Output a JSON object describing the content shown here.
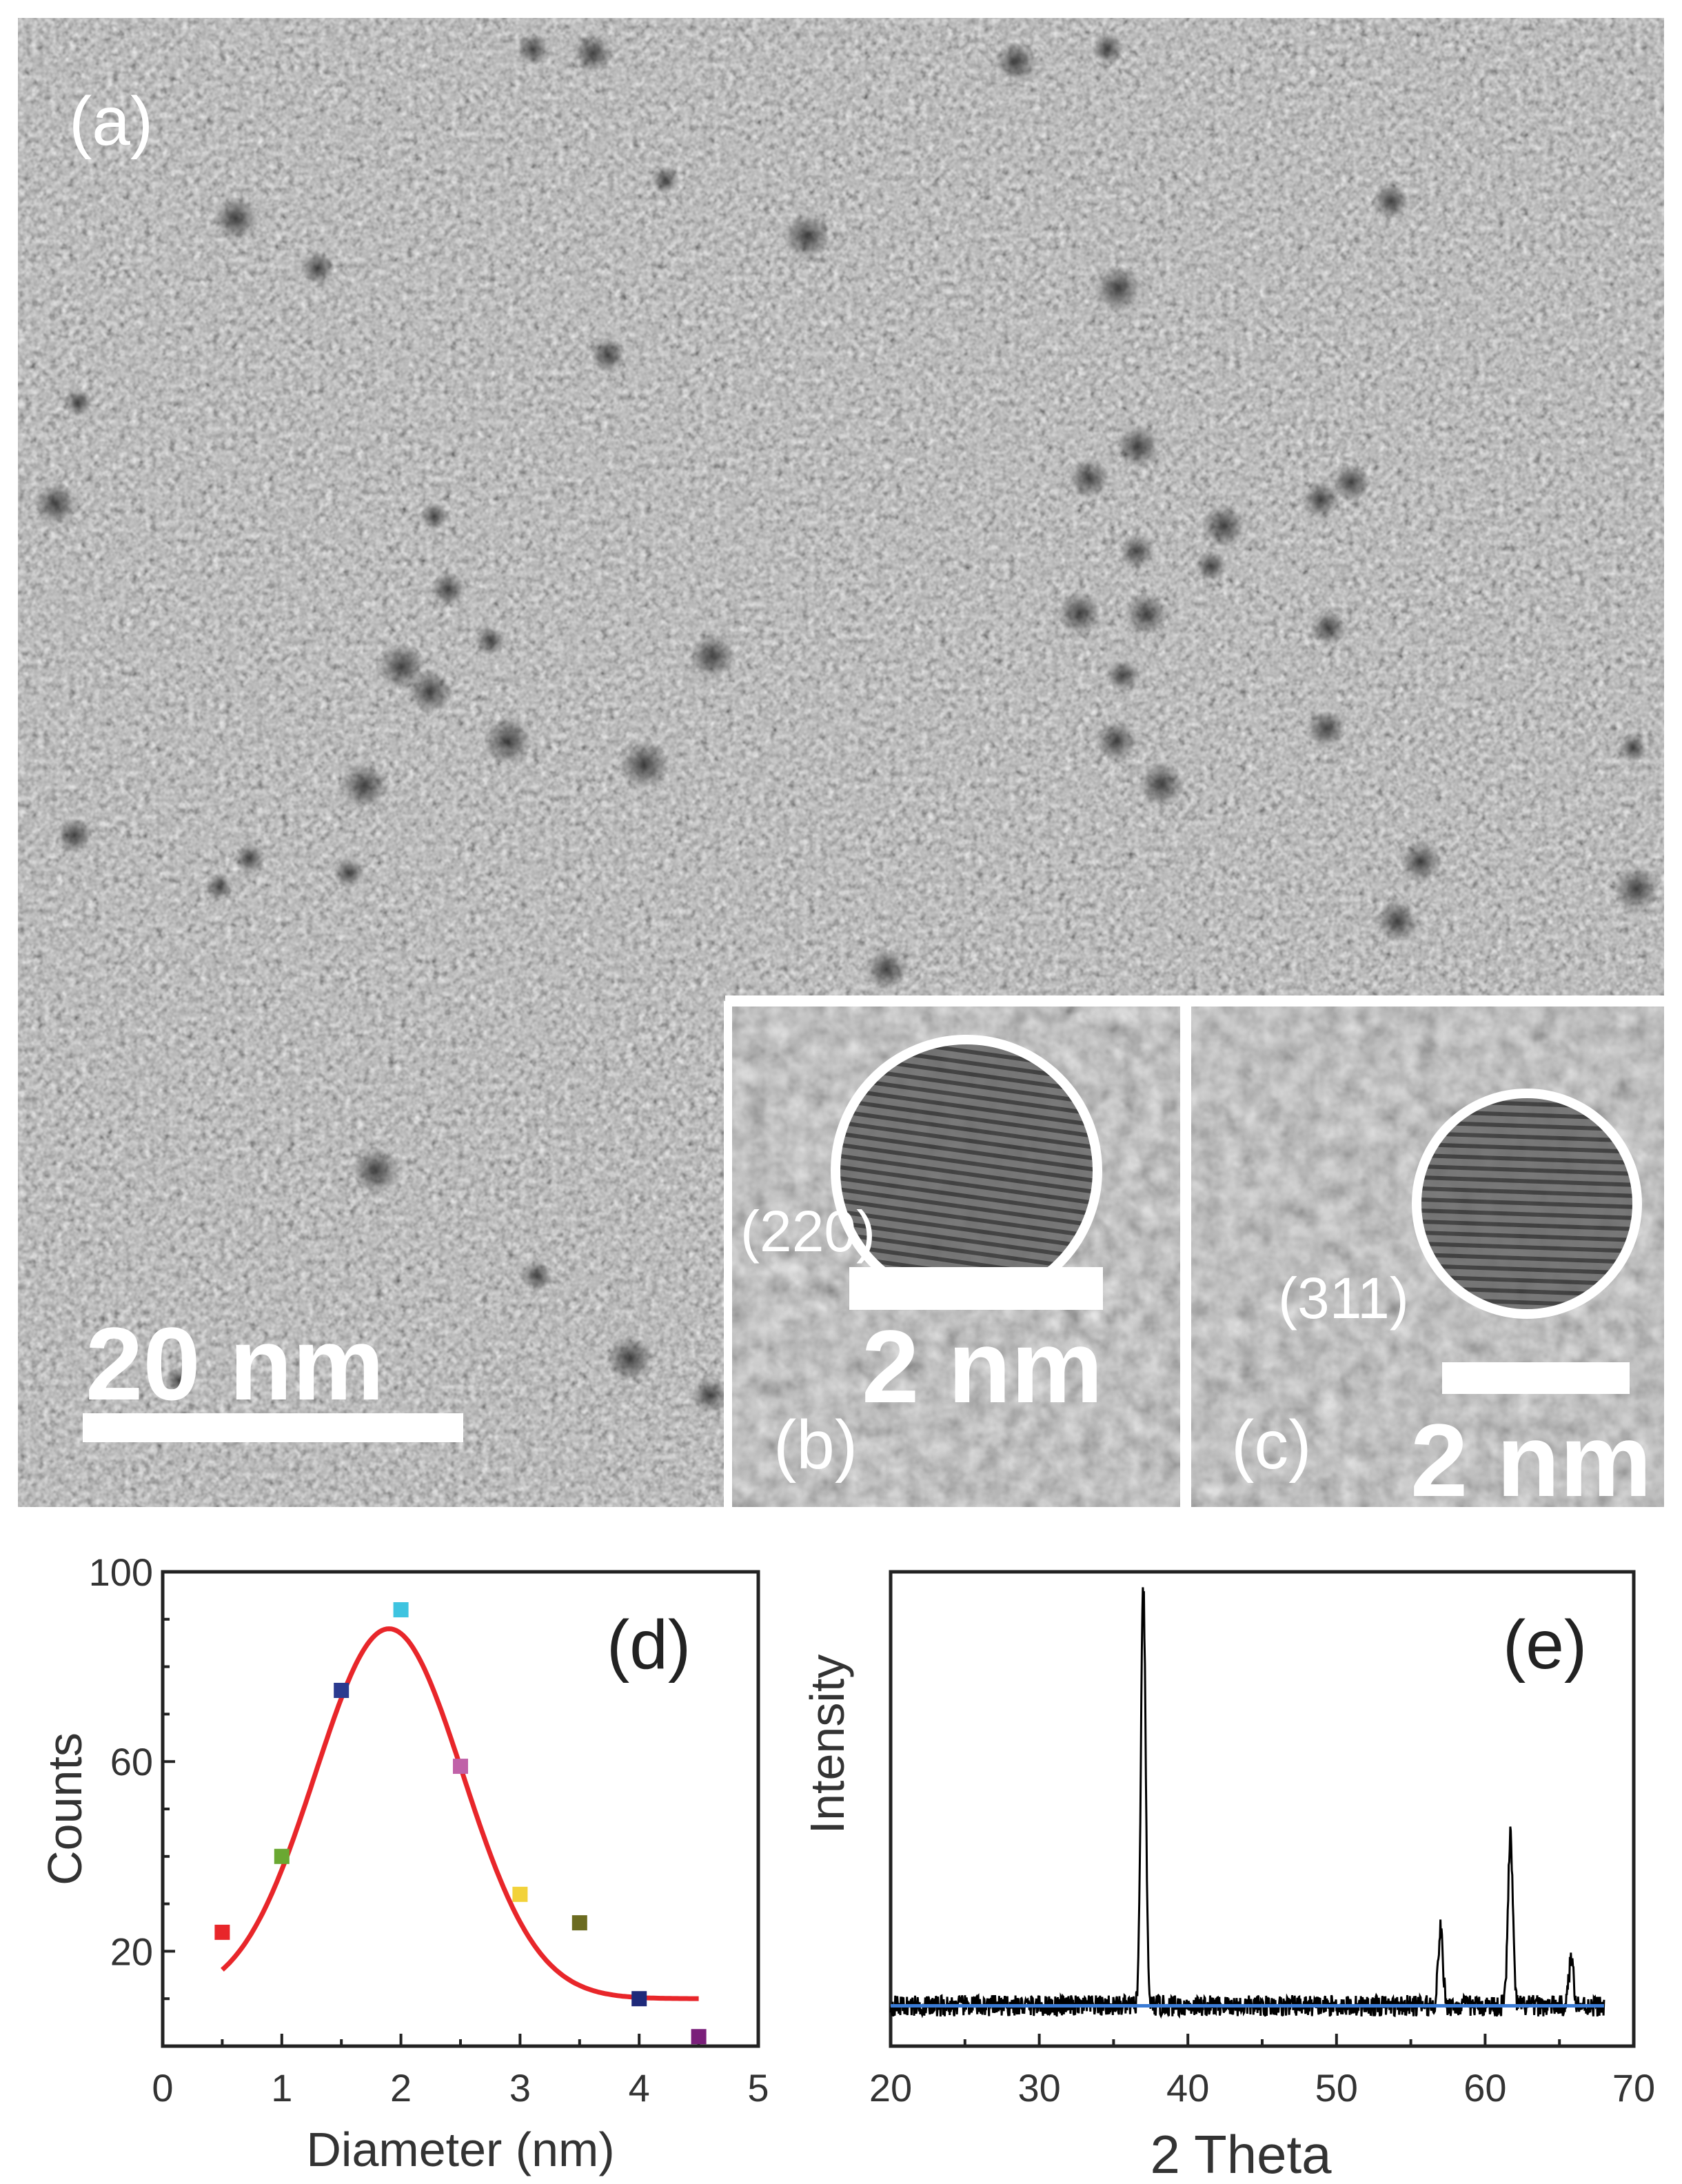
{
  "panels": {
    "a": {
      "label": "(a)",
      "scale_bar": "20  nm"
    },
    "b": {
      "label": "(b)",
      "plane": "(220)",
      "scale_bar": "2 nm"
    },
    "c": {
      "label": "(c)",
      "plane": "(311)",
      "scale_bar": "2 nm"
    }
  },
  "colors": {
    "fit_line": "#e8262a",
    "xrd_trace": "#000000",
    "xrd_baseline": "#3a7bd5",
    "axis": "#222222"
  },
  "chart_data": [
    {
      "panel_label": "(d)",
      "type": "scatter",
      "title": "",
      "xlabel": "Diameter (nm)",
      "ylabel": "Counts",
      "xlim": [
        0,
        5
      ],
      "ylim": [
        0,
        100
      ],
      "x_ticks": [
        0,
        1,
        2,
        3,
        4,
        5
      ],
      "y_ticks": [
        20,
        60,
        100
      ],
      "grid": false,
      "series": [
        {
          "points": [
            {
              "x": 0.5,
              "y": 24,
              "color": "#e8262a"
            },
            {
              "x": 1.0,
              "y": 40,
              "color": "#6aa832"
            },
            {
              "x": 1.5,
              "y": 75,
              "color": "#2b3a8f"
            },
            {
              "x": 2.0,
              "y": 92,
              "color": "#3ec4e0"
            },
            {
              "x": 2.5,
              "y": 59,
              "color": "#c061a8"
            },
            {
              "x": 3.0,
              "y": 32,
              "color": "#f2d23a"
            },
            {
              "x": 3.5,
              "y": 26,
              "color": "#6b6b20"
            },
            {
              "x": 4.0,
              "y": 10,
              "color": "#1f2a7a"
            },
            {
              "x": 4.5,
              "y": 2,
              "color": "#7a1f7a"
            }
          ]
        },
        {
          "type": "line",
          "fit": {
            "kind": "gaussian",
            "baseline": 10,
            "amplitude": 78,
            "center": 1.9,
            "sigma": 0.62,
            "x_from": 0.5,
            "x_to": 4.5
          }
        }
      ]
    },
    {
      "panel_label": "(e)",
      "type": "line",
      "title": "",
      "xlabel": "2 Theta",
      "ylabel": "Intensity",
      "xlim": [
        20,
        70
      ],
      "x_ticks": [
        20,
        30,
        40,
        50,
        60,
        70
      ],
      "y_ticks": [],
      "grid": false,
      "baseline_level": 0.085,
      "data_x_range": [
        20,
        68
      ],
      "peaks": [
        {
          "x": 37.0,
          "height": 0.88
        },
        {
          "x": 57.0,
          "height": 0.16
        },
        {
          "x": 61.7,
          "height": 0.36
        },
        {
          "x": 65.8,
          "height": 0.1
        }
      ]
    }
  ]
}
